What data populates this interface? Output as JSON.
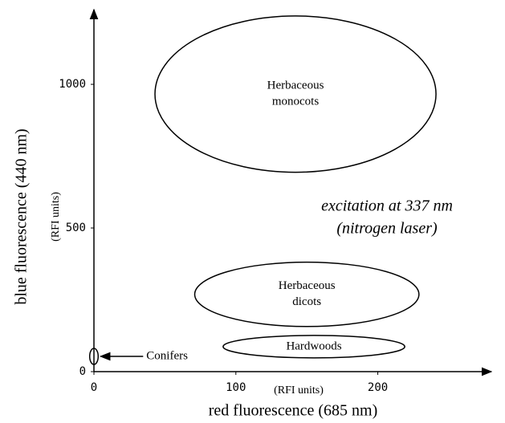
{
  "chart_data": {
    "type": "ellipse",
    "x_label": "red fluorescence (685 nm)",
    "x_unit": "(RFI units)",
    "y_label": "blue fluorescence (440 nm)",
    "y_unit": "(RFI units)",
    "annotation_lines": [
      "excitation at 337 nm",
      "(nitrogen laser)"
    ],
    "xlim": [
      0,
      280
    ],
    "ylim": [
      0,
      1260
    ],
    "xticks": [
      0,
      100,
      200
    ],
    "yticks": [
      0,
      500,
      1000
    ],
    "regions": [
      {
        "label_lines": [
          "Herbaceous",
          "monocots"
        ],
        "x": 142,
        "y": 966,
        "x_radius": 99,
        "y_radius": 272
      },
      {
        "label_lines": [
          "Herbaceous",
          "dicots"
        ],
        "x": 150,
        "y": 269,
        "x_radius": 79,
        "y_radius": 112
      },
      {
        "label_lines": [
          "Hardwoods"
        ],
        "x": 155,
        "y": 87,
        "x_radius": 64,
        "y_radius": 39
      },
      {
        "label_lines": [
          "Conifers"
        ],
        "x": 0,
        "y": 53,
        "x_radius": 3,
        "y_radius": 28
      }
    ]
  }
}
